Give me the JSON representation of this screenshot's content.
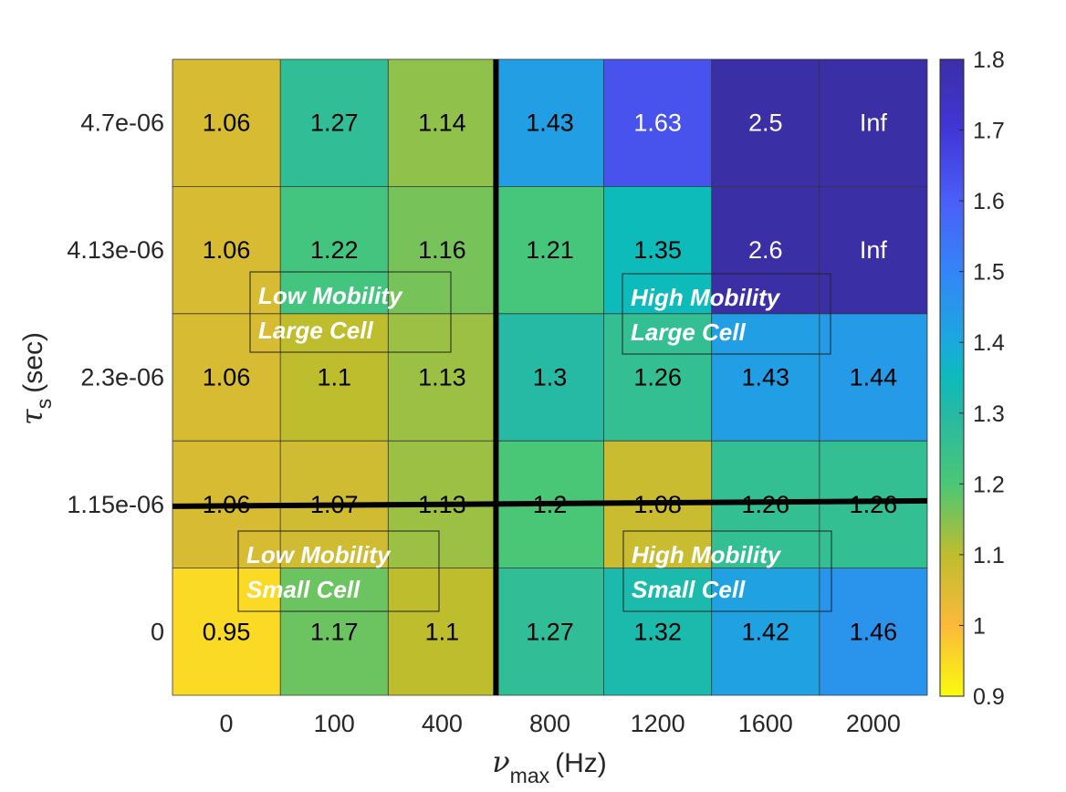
{
  "chart_data": {
    "type": "heatmap",
    "x_categories": [
      "0",
      "100",
      "400",
      "800",
      "1200",
      "1600",
      "2000"
    ],
    "y_categories": [
      "4.7e-06",
      "4.13e-06",
      "2.3e-06",
      "1.15e-06",
      "0"
    ],
    "values": [
      [
        "1.06",
        "1.27",
        "1.14",
        "1.43",
        "1.63",
        "2.5",
        "Inf"
      ],
      [
        "1.06",
        "1.22",
        "1.16",
        "1.21",
        "1.35",
        "2.6",
        "Inf"
      ],
      [
        "1.06",
        "1.1",
        "1.13",
        "1.3",
        "1.26",
        "1.43",
        "1.44"
      ],
      [
        "1.06",
        "1.07",
        "1.13",
        "1.2",
        "1.08",
        "1.26",
        "1.26"
      ],
      [
        "0.95",
        "1.17",
        "1.1",
        "1.27",
        "1.32",
        "1.42",
        "1.46"
      ]
    ],
    "xlabel": {
      "symbol": "ν",
      "sub": "max",
      "unit": "(Hz)"
    },
    "ylabel": {
      "symbol": "τ",
      "sub": "s",
      "unit": "(sec)"
    },
    "colorbar": {
      "range": [
        0.9,
        1.8
      ],
      "ticks": [
        "0.9",
        "1",
        "1.1",
        "1.2",
        "1.3",
        "1.4",
        "1.5",
        "1.6",
        "1.7",
        "1.8"
      ],
      "colormap": "parula"
    },
    "annotations": [
      {
        "line1": "Low Mobility",
        "line2": "Large Cell"
      },
      {
        "line1": "High Mobility",
        "line2": "Large Cell"
      },
      {
        "line1": "Low Mobility",
        "line2": "Small Cell"
      },
      {
        "line1": "High Mobility",
        "line2": "Small Cell"
      }
    ],
    "grid": true
  }
}
